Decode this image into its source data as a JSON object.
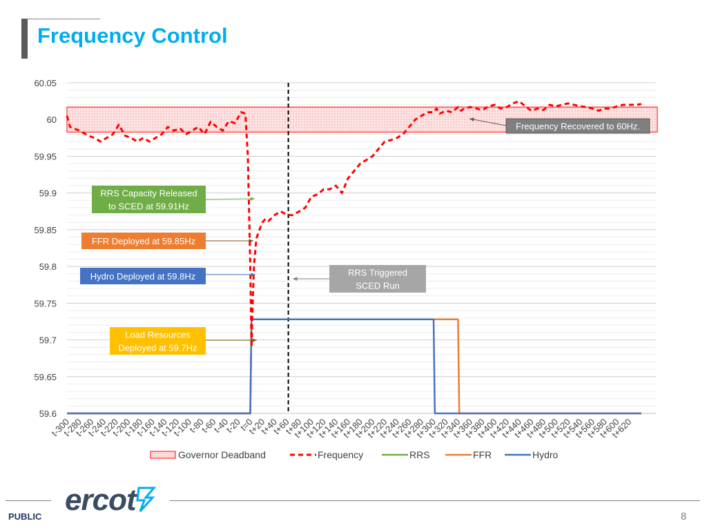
{
  "header": {
    "title": "Frequency Control"
  },
  "footer": {
    "classification": "PUBLIC",
    "page_number": "8",
    "logo_text": "ercot"
  },
  "colors": {
    "title": "#00aeef",
    "frequency": "#ff0000",
    "rrs": "#70ad47",
    "ffr": "#ed7d31",
    "hydro": "#4472c4",
    "deadband_fill": "#fde3e3",
    "deadband_border": "#ff0000",
    "callout_rrs": "#70ad47",
    "callout_ffr": "#ed7d31",
    "callout_hydro": "#4472c4",
    "callout_load": "#ffc000",
    "callout_sced": "#a6a6a6",
    "callout_recovered": "#7f7f7f"
  },
  "chart_data": {
    "type": "line",
    "title": "",
    "xlabel": "",
    "ylabel": "",
    "ylim": [
      59.6,
      60.05
    ],
    "yticks": [
      59.6,
      59.65,
      59.7,
      59.75,
      59.8,
      59.85,
      59.9,
      59.95,
      60,
      60.05
    ],
    "ytick_labels": [
      "59.6",
      "59.65",
      "59.7",
      "59.75",
      "59.8",
      "59.85",
      "59.9",
      "59.95",
      "60",
      "60.05"
    ],
    "xlim": [
      -300,
      640
    ],
    "xticks": [
      -300,
      -280,
      -260,
      -240,
      -220,
      -200,
      -180,
      -160,
      -140,
      -120,
      -100,
      -80,
      -60,
      -40,
      -20,
      0,
      20,
      40,
      60,
      80,
      100,
      120,
      140,
      160,
      180,
      200,
      220,
      240,
      260,
      280,
      300,
      320,
      340,
      360,
      380,
      400,
      420,
      440,
      460,
      480,
      500,
      520,
      540,
      560,
      580,
      600,
      620
    ],
    "xtick_labels": [
      "t-300",
      "t-280",
      "t-260",
      "t-240",
      "t-220",
      "t-200",
      "t-180",
      "t-160",
      "t-140",
      "t-120",
      "t-100",
      "t-80",
      "t-60",
      "t-40",
      "t-20",
      "t=0",
      "t+20",
      "t+40",
      "t+60",
      "t+80",
      "t+100",
      "t+120",
      "t+140",
      "t+160",
      "t+180",
      "t+200",
      "t+220",
      "t+240",
      "t+260",
      "t+280",
      "t+300",
      "t+320",
      "t+340",
      "t+360",
      "t+380",
      "t+400",
      "t+420",
      "t+440",
      "t+460",
      "t+480",
      "t+500",
      "t+520",
      "t+540",
      "t+560",
      "t+580",
      "t+600",
      "t+620"
    ],
    "grid": true,
    "legend_position": "bottom",
    "legend": [
      "Governor Deadband",
      "Frequency",
      "RRS",
      "FFR",
      "Hydro"
    ],
    "deadband": {
      "name": "Governor Deadband",
      "y_low": 59.983,
      "y_high": 60.017
    },
    "series": [
      {
        "name": "Frequency",
        "style": "dashed",
        "x": [
          -300,
          -295,
          -280,
          -265,
          -255,
          -245,
          -235,
          -225,
          -215,
          -205,
          -195,
          -185,
          -175,
          -165,
          -155,
          -145,
          -135,
          -125,
          -115,
          -105,
          -95,
          -85,
          -75,
          -65,
          -55,
          -45,
          -35,
          -25,
          -15,
          -8,
          -4,
          0,
          2,
          4,
          6,
          8,
          10,
          15,
          20,
          25,
          30,
          40,
          50,
          60,
          70,
          80,
          90,
          100,
          110,
          120,
          130,
          140,
          150,
          160,
          170,
          180,
          190,
          200,
          210,
          220,
          230,
          240,
          250,
          260,
          270,
          280,
          290,
          300,
          305,
          310,
          320,
          330,
          340,
          345,
          350,
          360,
          370,
          380,
          390,
          400,
          410,
          420,
          430,
          440,
          450,
          460,
          470,
          480,
          490,
          500,
          510,
          520,
          530,
          540,
          550,
          560,
          570,
          580,
          590,
          600,
          610,
          620,
          630,
          640
        ],
        "y": [
          60.005,
          59.99,
          59.985,
          59.978,
          59.975,
          59.97,
          59.975,
          59.98,
          59.993,
          59.978,
          59.975,
          59.97,
          59.975,
          59.97,
          59.975,
          59.98,
          59.99,
          59.985,
          59.988,
          59.98,
          59.985,
          59.99,
          59.98,
          59.997,
          59.99,
          59.985,
          59.998,
          59.995,
          60.01,
          60.008,
          59.95,
          59.8,
          59.69,
          59.75,
          59.8,
          59.82,
          59.838,
          59.85,
          59.86,
          59.865,
          59.862,
          59.87,
          59.875,
          59.87,
          59.87,
          59.875,
          59.88,
          59.895,
          59.898,
          59.905,
          59.905,
          59.91,
          59.9,
          59.92,
          59.93,
          59.94,
          59.945,
          59.95,
          59.96,
          59.97,
          59.972,
          59.975,
          59.98,
          59.99,
          60.0,
          60.005,
          60.01,
          60.01,
          60.015,
          60.008,
          60.012,
          60.01,
          60.017,
          60.012,
          60.015,
          60.017,
          60.015,
          60.013,
          60.018,
          60.02,
          60.015,
          60.017,
          60.022,
          60.025,
          60.018,
          60.012,
          60.015,
          60.013,
          60.02,
          60.018,
          60.02,
          60.022,
          60.02,
          60.018,
          60.017,
          60.015,
          60.012,
          60.015,
          60.015,
          60.018,
          60.02,
          60.02,
          60.02,
          60.021
        ]
      },
      {
        "name": "RRS",
        "style": "solid",
        "x": [
          -300,
          -2,
          0,
          2,
          300
        ],
        "y": [
          59.6,
          59.6,
          59.6,
          59.728,
          59.728
        ]
      },
      {
        "name": "FFR",
        "style": "solid",
        "x": [
          -300,
          0,
          2,
          340,
          342,
          640
        ],
        "y": [
          59.6,
          59.6,
          59.728,
          59.728,
          59.6,
          59.6
        ]
      },
      {
        "name": "Hydro",
        "style": "solid",
        "x": [
          -300,
          0,
          2,
          300,
          302,
          640
        ],
        "y": [
          59.6,
          59.6,
          59.728,
          59.728,
          59.6,
          59.6
        ]
      }
    ],
    "sced_line": {
      "x": 60
    },
    "annotations": [
      {
        "id": "rrs",
        "lines": [
          "RRS Capacity Released",
          "to SCED at 59.91Hz"
        ]
      },
      {
        "id": "ffr",
        "lines": [
          "FFR Deployed at 59.85Hz"
        ]
      },
      {
        "id": "hydro",
        "lines": [
          "Hydro Deployed at 59.8Hz"
        ]
      },
      {
        "id": "load",
        "lines": [
          "Load Resources",
          "Deployed at 59.7Hz"
        ]
      },
      {
        "id": "sced",
        "lines": [
          "RRS Triggered",
          "SCED Run"
        ]
      },
      {
        "id": "recovered",
        "lines": [
          "Frequency Recovered to 60Hz."
        ]
      }
    ]
  }
}
